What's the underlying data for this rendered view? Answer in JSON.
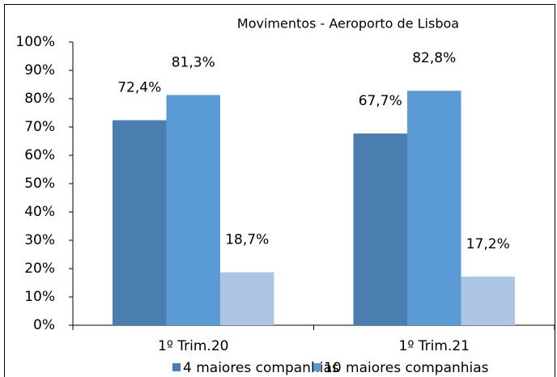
{
  "chart_data": {
    "type": "bar",
    "title": "Movimentos - Aeroporto de Lisboa",
    "categories": [
      "1º Trim.20",
      "1º Trim.21"
    ],
    "series": [
      {
        "name": "4 maiores companhias",
        "color": "#4a7eb0",
        "values": [
          72.4,
          67.7
        ],
        "value_labels": [
          "72,4%",
          "67,7%"
        ]
      },
      {
        "name": "10 maiores companhias",
        "color": "#5b9bd5",
        "values": [
          81.3,
          82.8
        ],
        "value_labels": [
          "81,3%",
          "82,8%"
        ]
      },
      {
        "color": "#adc6e6",
        "values": [
          18.7,
          17.2
        ],
        "value_labels": [
          "18,7%",
          "17,2%"
        ]
      }
    ],
    "ylim": [
      0,
      100
    ],
    "yticks": [
      {
        "value": 0,
        "label": "0%"
      },
      {
        "value": 10,
        "label": "10%"
      },
      {
        "value": 20,
        "label": "20%"
      },
      {
        "value": 30,
        "label": "30%"
      },
      {
        "value": 40,
        "label": "40%"
      },
      {
        "value": 50,
        "label": "50%"
      },
      {
        "value": 60,
        "label": "60%"
      },
      {
        "value": 70,
        "label": "70%"
      },
      {
        "value": 80,
        "label": "80%"
      },
      {
        "value": 90,
        "label": "90%"
      },
      {
        "value": 100,
        "label": "100%"
      }
    ],
    "grid": false
  }
}
